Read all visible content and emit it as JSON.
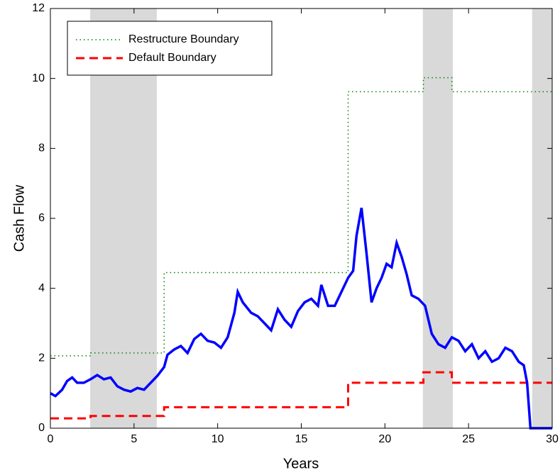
{
  "chart_data": {
    "type": "line",
    "xlabel": "Years",
    "ylabel": "Cash Flow",
    "xlim": [
      0,
      30
    ],
    "ylim": [
      0,
      12
    ],
    "xticks": [
      0,
      5,
      10,
      15,
      20,
      25,
      30
    ],
    "yticks": [
      0,
      2,
      4,
      6,
      8,
      10,
      12
    ],
    "grid": false,
    "legend_position": "upper left",
    "shaded_regions": [
      [
        2.38,
        6.36
      ],
      [
        22.27,
        24.06
      ],
      [
        28.8,
        30
      ]
    ],
    "shade_color": "#d9d9d9",
    "series": [
      {
        "color": "#0000ff",
        "style": "solid",
        "x": [
          0,
          0.3,
          0.7,
          1,
          1.3,
          1.6,
          2,
          2.4,
          2.8,
          3.2,
          3.6,
          4,
          4.4,
          4.8,
          5.2,
          5.6,
          6,
          6.4,
          6.8,
          7,
          7.4,
          7.8,
          8.2,
          8.6,
          9,
          9.4,
          9.8,
          10.2,
          10.6,
          11,
          11.2,
          11.5,
          12,
          12.4,
          12.8,
          13.2,
          13.6,
          14,
          14.4,
          14.8,
          15.2,
          15.6,
          16,
          16.2,
          16.6,
          17,
          17.4,
          17.8,
          18.1,
          18.3,
          18.6,
          18.9,
          19.2,
          19.5,
          19.8,
          20.1,
          20.4,
          20.7,
          21,
          21.3,
          21.6,
          22,
          22.4,
          22.8,
          23.2,
          23.6,
          24,
          24.4,
          24.8,
          25.2,
          25.6,
          26,
          26.4,
          26.8,
          27.2,
          27.6,
          28,
          28.3,
          28.5,
          28.7,
          30
        ],
        "values": [
          1.0,
          0.92,
          1.1,
          1.35,
          1.45,
          1.3,
          1.3,
          1.4,
          1.52,
          1.4,
          1.45,
          1.2,
          1.1,
          1.05,
          1.15,
          1.1,
          1.3,
          1.5,
          1.75,
          2.1,
          2.25,
          2.35,
          2.15,
          2.55,
          2.7,
          2.5,
          2.45,
          2.3,
          2.6,
          3.3,
          3.9,
          3.6,
          3.3,
          3.2,
          3.0,
          2.8,
          3.4,
          3.1,
          2.9,
          3.35,
          3.6,
          3.7,
          3.5,
          4.1,
          3.5,
          3.5,
          3.9,
          4.3,
          4.5,
          5.5,
          6.3,
          5.0,
          3.6,
          4.0,
          4.3,
          4.7,
          4.6,
          5.3,
          4.9,
          4.4,
          3.8,
          3.7,
          3.5,
          2.7,
          2.4,
          2.3,
          2.6,
          2.5,
          2.2,
          2.4,
          2.0,
          2.2,
          1.9,
          2.0,
          2.3,
          2.2,
          1.9,
          1.8,
          1.3,
          0,
          0
        ]
      },
      {
        "name": "Restructure Boundary",
        "color": "#008000",
        "style": "dotted",
        "x": [
          0,
          2.4,
          2.4,
          6.8,
          6.8,
          17.8,
          17.8,
          22.3,
          22.3,
          24,
          24,
          30
        ],
        "values": [
          2.07,
          2.07,
          2.15,
          2.15,
          4.45,
          4.45,
          9.62,
          9.62,
          10.02,
          10.02,
          9.62,
          9.62
        ]
      },
      {
        "name": "Default Boundary",
        "color": "#ff0000",
        "style": "dashed",
        "x": [
          0,
          2.4,
          2.4,
          6.8,
          6.8,
          17.8,
          17.8,
          22.3,
          22.3,
          24,
          24,
          30
        ],
        "values": [
          0.28,
          0.28,
          0.35,
          0.35,
          0.6,
          0.6,
          1.3,
          1.3,
          1.6,
          1.6,
          1.3,
          1.3
        ]
      }
    ]
  }
}
